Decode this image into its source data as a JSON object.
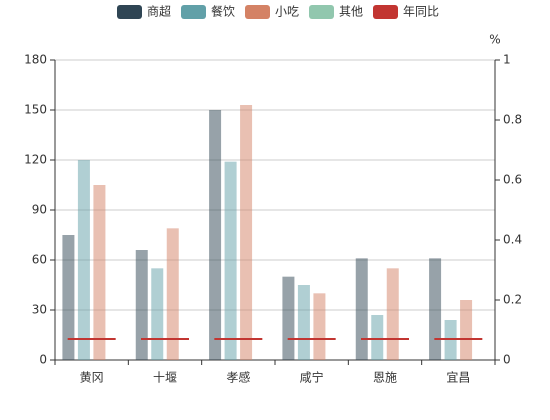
{
  "chart_data": {
    "type": "bar",
    "categories": [
      "黄冈",
      "十堰",
      "孝感",
      "咸宁",
      "恩施",
      "宜昌"
    ],
    "series": [
      {
        "name": "商超",
        "color": "#2f4554",
        "values": [
          75,
          66,
          150,
          50,
          61,
          61
        ]
      },
      {
        "name": "餐饮",
        "color": "#61a0a8",
        "values": [
          120,
          55,
          119,
          45,
          27,
          24
        ]
      },
      {
        "name": "小吃",
        "color": "#d48265",
        "values": [
          105,
          79,
          153,
          40,
          55,
          36
        ]
      },
      {
        "name": "其他",
        "color": "#91c7ae",
        "values": [
          null,
          null,
          null,
          null,
          null,
          null
        ]
      },
      {
        "name": "年同比",
        "color": "#c23531",
        "type": "line",
        "axis": "y2",
        "values": [
          0.07,
          0.07,
          0.07,
          0.07,
          0.07,
          0.07
        ]
      }
    ],
    "ylim": [
      0,
      180
    ],
    "yticks": [
      0,
      30,
      60,
      90,
      120,
      150,
      180
    ],
    "y2label": "%",
    "y2lim": [
      0,
      1
    ],
    "y2ticks": [
      0,
      0.2,
      0.4,
      0.6,
      0.8,
      1
    ],
    "grid": true,
    "legend": "top"
  }
}
